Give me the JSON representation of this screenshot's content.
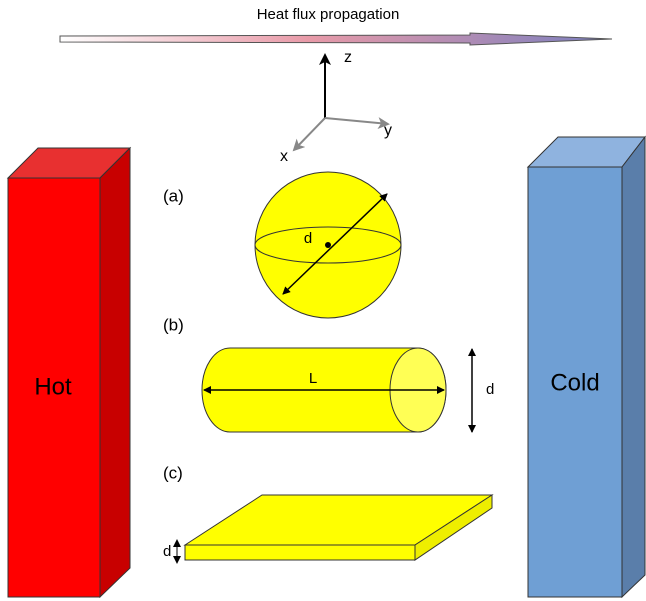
{
  "header": {
    "title": "Heat flux propagation"
  },
  "axes": {
    "z": "z",
    "y": "y",
    "x": "x"
  },
  "panels": [
    {
      "label": "(a)",
      "dimensions": [
        "d"
      ]
    },
    {
      "label": "(b)",
      "dimensions": [
        "L",
        "d"
      ]
    },
    {
      "label": "(c)",
      "dimensions": [
        "d"
      ]
    }
  ],
  "reservoirs": {
    "hot": "Hot",
    "cold": "Cold"
  }
}
